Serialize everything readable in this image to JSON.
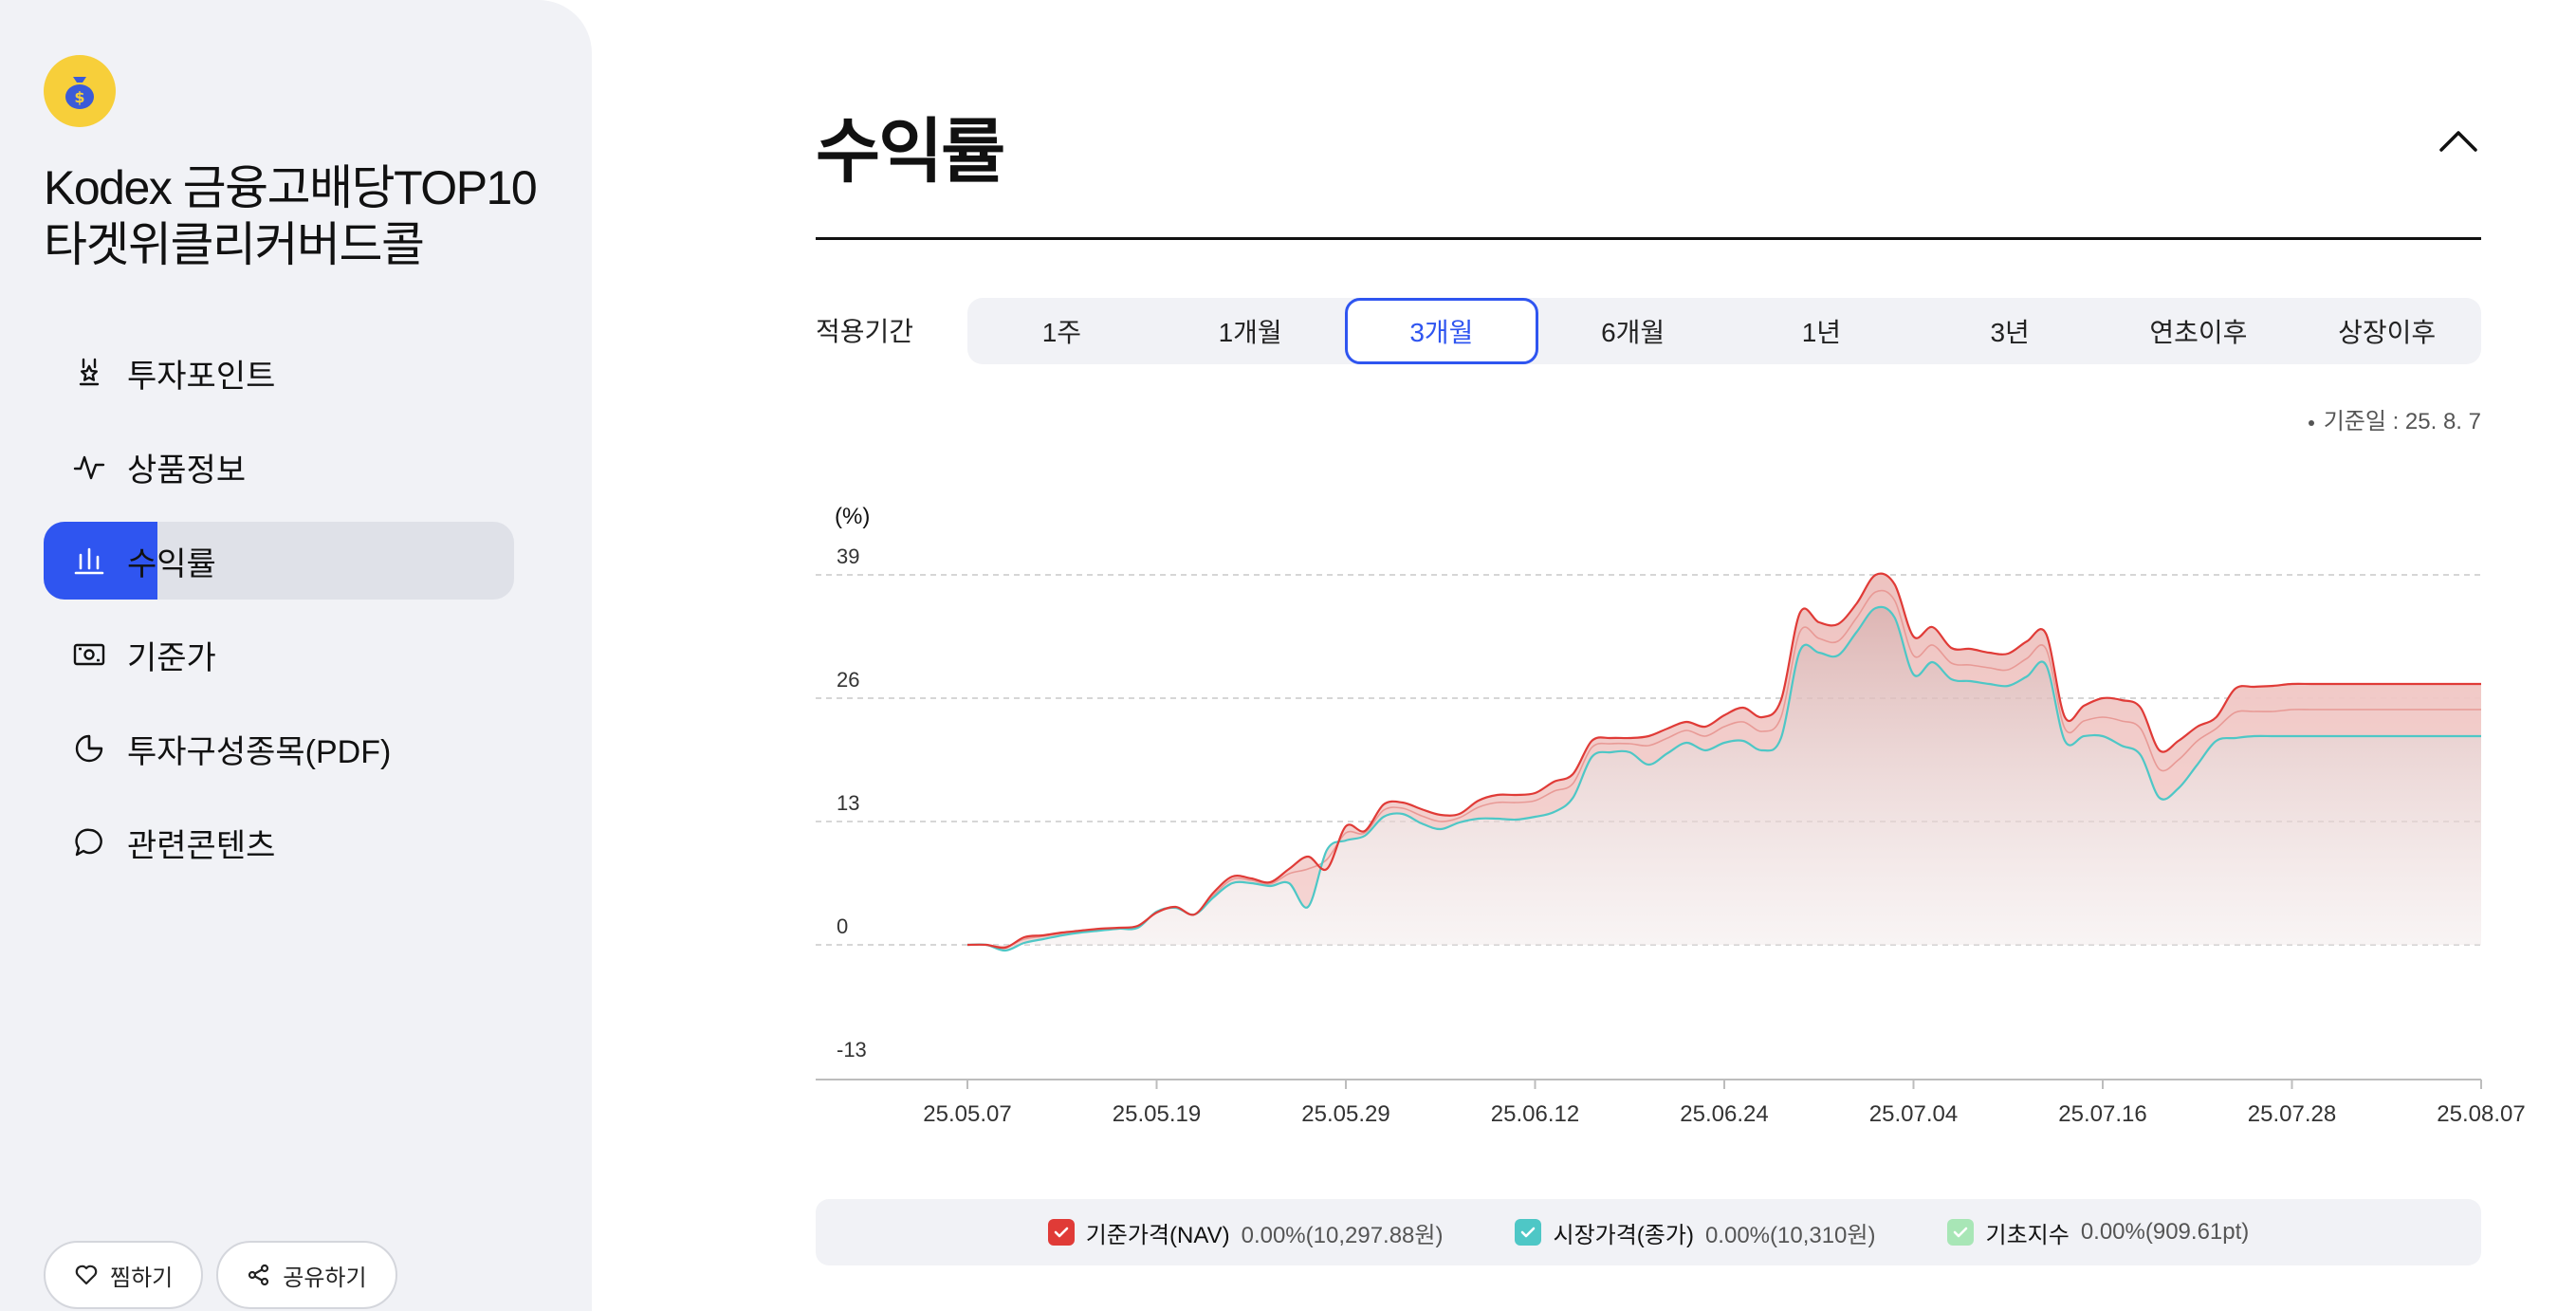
{
  "sidebar": {
    "fund_name": "Kodex 금융고배당TOP10타겟위클리커버드콜",
    "items": [
      {
        "label": "투자포인트",
        "icon": "award-icon"
      },
      {
        "label": "상품정보",
        "icon": "pulse-icon"
      },
      {
        "label": "수익률",
        "icon": "bar-chart-icon",
        "active": true
      },
      {
        "label": "기준가",
        "icon": "banknote-icon"
      },
      {
        "label": "투자구성종목(PDF)",
        "icon": "pie-chart-icon"
      },
      {
        "label": "관련콘텐츠",
        "icon": "chat-bubble-icon"
      }
    ],
    "like_label": "찜하기",
    "share_label": "공유하기"
  },
  "main": {
    "title": "수익률",
    "period_label": "적용기간",
    "tabs": [
      "1주",
      "1개월",
      "3개월",
      "6개월",
      "1년",
      "3년",
      "연초이후",
      "상장이후"
    ],
    "active_tab": "3개월",
    "as_of": "기준일 : 25. 8. 7"
  },
  "legend": [
    {
      "name": "기준가격(NAV)",
      "value": "0.00%(10,297.88원)",
      "color": "#e03b37"
    },
    {
      "name": "시장가격(종가)",
      "value": "0.00%(10,310원)",
      "color": "#4ec7c6"
    },
    {
      "name": "기초지수",
      "value": "0.00%(909.61pt)",
      "color": "#a8e6b6"
    }
  ],
  "colors": {
    "accent": "#2f55f0",
    "nav": "#e03b37",
    "market": "#4ec7c6",
    "index": "#a8e6b6"
  },
  "chart_data": {
    "type": "area",
    "ylabel": "(%)",
    "ylim": [
      -13,
      39
    ],
    "yticks": [
      39,
      26,
      13,
      0,
      -13
    ],
    "xticks": [
      "25.05.07",
      "25.05.19",
      "25.05.29",
      "25.06.12",
      "25.06.24",
      "25.07.04",
      "25.07.16",
      "25.07.28",
      "25.08.07"
    ],
    "x": [
      0,
      2,
      4,
      6,
      8,
      10,
      12,
      14,
      16,
      18,
      20,
      22,
      24,
      26,
      28,
      30,
      32,
      34,
      36,
      38,
      40,
      42,
      44,
      46,
      48,
      50,
      52,
      54,
      56,
      58,
      60,
      62,
      64,
      66,
      68,
      70,
      72,
      74,
      76,
      78,
      80,
      82,
      84,
      86,
      88,
      90,
      92,
      94,
      96,
      98,
      100,
      102,
      104,
      106,
      108,
      110,
      112,
      114,
      116,
      118,
      120,
      122,
      124,
      126,
      128,
      130,
      132,
      134,
      136,
      138,
      140,
      142,
      144,
      146,
      148,
      150,
      152,
      154,
      156,
      158,
      160
    ],
    "series": [
      {
        "name": "기준가격(NAV)",
        "values": [
          0,
          0,
          -0.3,
          0.8,
          1.0,
          1.3,
          1.5,
          1.7,
          1.8,
          2.0,
          3.4,
          4.0,
          3.2,
          5.5,
          7.2,
          7.0,
          6.6,
          8.0,
          9.3,
          8.0,
          12.5,
          12.0,
          14.8,
          15.0,
          14.3,
          13.7,
          13.8,
          15.2,
          15.8,
          15.8,
          16.0,
          17.2,
          18.0,
          21.5,
          21.8,
          21.8,
          22.0,
          22.8,
          23.5,
          23.0,
          24.2,
          25.0,
          24.0,
          25.8,
          35.0,
          34.0,
          33.8,
          36.0,
          39.0,
          38.0,
          32.5,
          33.5,
          31.3,
          31.2,
          30.8,
          30.7,
          32.0,
          32.8,
          24.0,
          25.2,
          26.0,
          25.8,
          25.0,
          20.5,
          21.5,
          23.0,
          24.0,
          27.0,
          27.2,
          27.3,
          27.5,
          27.5,
          27.5,
          27.5,
          27.5,
          27.5,
          27.5,
          27.5,
          27.5,
          27.5,
          27.5
        ]
      },
      {
        "name": "시장가격(종가)",
        "values": [
          0,
          0,
          -0.6,
          0.2,
          0.6,
          1.0,
          1.3,
          1.5,
          1.7,
          1.8,
          3.5,
          3.9,
          3.2,
          5.0,
          6.5,
          6.5,
          6.2,
          6.5,
          4.0,
          10.0,
          11.0,
          11.5,
          13.5,
          13.8,
          12.8,
          12.2,
          12.9,
          13.3,
          13.3,
          13.2,
          13.5,
          14.0,
          15.5,
          19.8,
          20.3,
          20.3,
          19.0,
          20.2,
          21.3,
          20.5,
          21.3,
          21.5,
          20.5,
          21.8,
          31.0,
          30.8,
          30.5,
          33.0,
          35.5,
          34.5,
          28.5,
          29.8,
          28.0,
          27.8,
          27.5,
          27.3,
          28.3,
          29.5,
          21.5,
          22.0,
          22.0,
          21.0,
          20.0,
          15.5,
          16.5,
          19.0,
          21.5,
          21.8,
          22.0,
          22.0,
          22.0,
          22.0,
          22.0,
          22.0,
          22.0,
          22.0,
          22.0,
          22.0,
          22.0,
          22.0,
          22.0
        ]
      },
      {
        "name": "기초지수",
        "values": [
          0,
          0,
          -0.2,
          0.6,
          0.9,
          1.2,
          1.4,
          1.6,
          1.7,
          1.9,
          3.4,
          3.9,
          3.2,
          5.2,
          6.9,
          6.8,
          6.4,
          7.5,
          8.0,
          9.0,
          11.8,
          11.8,
          14.2,
          14.4,
          13.6,
          13.0,
          13.4,
          14.5,
          15.0,
          15.0,
          15.2,
          16.2,
          17.0,
          20.8,
          21.2,
          21.2,
          21.0,
          21.8,
          22.6,
          22.0,
          23.0,
          23.5,
          22.5,
          24.0,
          33.0,
          32.3,
          32.0,
          34.5,
          37.2,
          36.3,
          30.5,
          31.6,
          29.7,
          29.5,
          29.2,
          29.0,
          30.2,
          31.2,
          22.8,
          23.6,
          24.0,
          23.6,
          22.8,
          18.5,
          19.5,
          21.5,
          22.8,
          24.5,
          24.6,
          24.6,
          24.8,
          24.8,
          24.8,
          24.8,
          24.8,
          24.8,
          24.8,
          24.8,
          24.8,
          24.8,
          24.8
        ]
      }
    ]
  }
}
